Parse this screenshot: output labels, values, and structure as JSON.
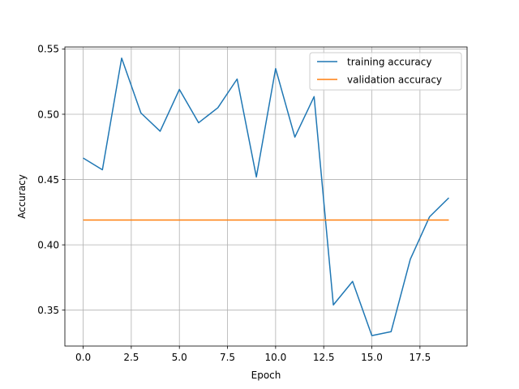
{
  "chart_data": {
    "type": "line",
    "title": "",
    "xlabel": "Epoch",
    "ylabel": "Accuracy",
    "xlim": [
      -0.95,
      19.95
    ],
    "ylim": [
      0.3225,
      0.5515
    ],
    "x_ticks": [
      0.0,
      2.5,
      5.0,
      7.5,
      10.0,
      12.5,
      15.0,
      17.5
    ],
    "x_tick_labels": [
      "0.0",
      "2.5",
      "5.0",
      "7.5",
      "10.0",
      "12.5",
      "15.0",
      "17.5"
    ],
    "y_ticks": [
      0.35,
      0.4,
      0.45,
      0.5,
      0.55
    ],
    "y_tick_labels": [
      "0.35",
      "0.40",
      "0.45",
      "0.50",
      "0.55"
    ],
    "grid": true,
    "legend_position": "top-right",
    "x": [
      0,
      1,
      2,
      3,
      4,
      5,
      6,
      7,
      8,
      9,
      10,
      11,
      12,
      13,
      14,
      15,
      16,
      17,
      18,
      19
    ],
    "series": [
      {
        "name": "training accuracy",
        "color": "#1f77b4",
        "values": [
          0.4665,
          0.4575,
          0.543,
          0.501,
          0.487,
          0.519,
          0.4935,
          0.505,
          0.527,
          0.452,
          0.535,
          0.4825,
          0.5135,
          0.354,
          0.372,
          0.3305,
          0.3335,
          0.389,
          0.4215,
          0.436
        ]
      },
      {
        "name": "validation accuracy",
        "color": "#ff7f0e",
        "values": [
          0.419,
          0.419,
          0.419,
          0.419,
          0.419,
          0.419,
          0.419,
          0.419,
          0.419,
          0.419,
          0.419,
          0.419,
          0.419,
          0.419,
          0.419,
          0.419,
          0.419,
          0.419,
          0.419,
          0.419
        ]
      }
    ]
  }
}
